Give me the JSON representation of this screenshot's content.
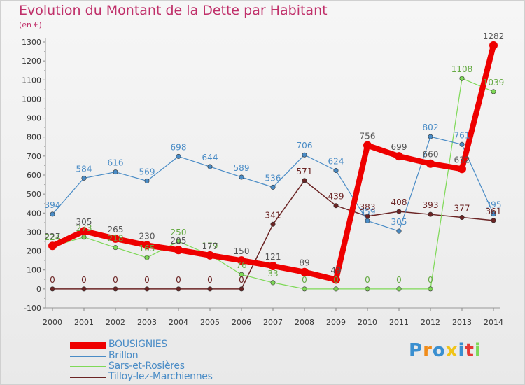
{
  "title": "Evolution du Montant de la Dette par Habitant",
  "unit_label": "(en €)",
  "logo_text": "Proxiti",
  "chart_data": {
    "type": "line",
    "title": "Evolution du Montant de la Dette par Habitant",
    "ylabel": "(en €)",
    "x": [
      2000,
      2001,
      2002,
      2003,
      2004,
      2005,
      2006,
      2007,
      2008,
      2009,
      2010,
      2011,
      2012,
      2013,
      2014
    ],
    "ylim": [
      -100,
      1300
    ],
    "ytick_step": 100,
    "grid": false,
    "legend_position": "bottom",
    "series": [
      {
        "name": "BOUSIGNIES",
        "color": "#ee0000",
        "values": [
          227,
          305,
          265,
          230,
          205,
          177,
          150,
          121,
          89,
          49,
          756,
          699,
          660,
          632,
          1282
        ]
      },
      {
        "name": "Brillon",
        "color": "#4a8cc6",
        "values": [
          394,
          584,
          616,
          569,
          698,
          644,
          589,
          536,
          706,
          624,
          359,
          305,
          802,
          761,
          395
        ]
      },
      {
        "name": "Sars-et-Rosières",
        "color": "#7ed957",
        "values": [
          224,
          273,
          218,
          165,
          250,
          179,
          76,
          33,
          0,
          0,
          0,
          0,
          0,
          1108,
          1039
        ]
      },
      {
        "name": "Tilloy-lez-Marchiennes",
        "color": "#6b2424",
        "values": [
          0,
          0,
          0,
          0,
          0,
          0,
          0,
          341,
          571,
          439,
          383,
          408,
          393,
          377,
          361
        ]
      }
    ]
  }
}
